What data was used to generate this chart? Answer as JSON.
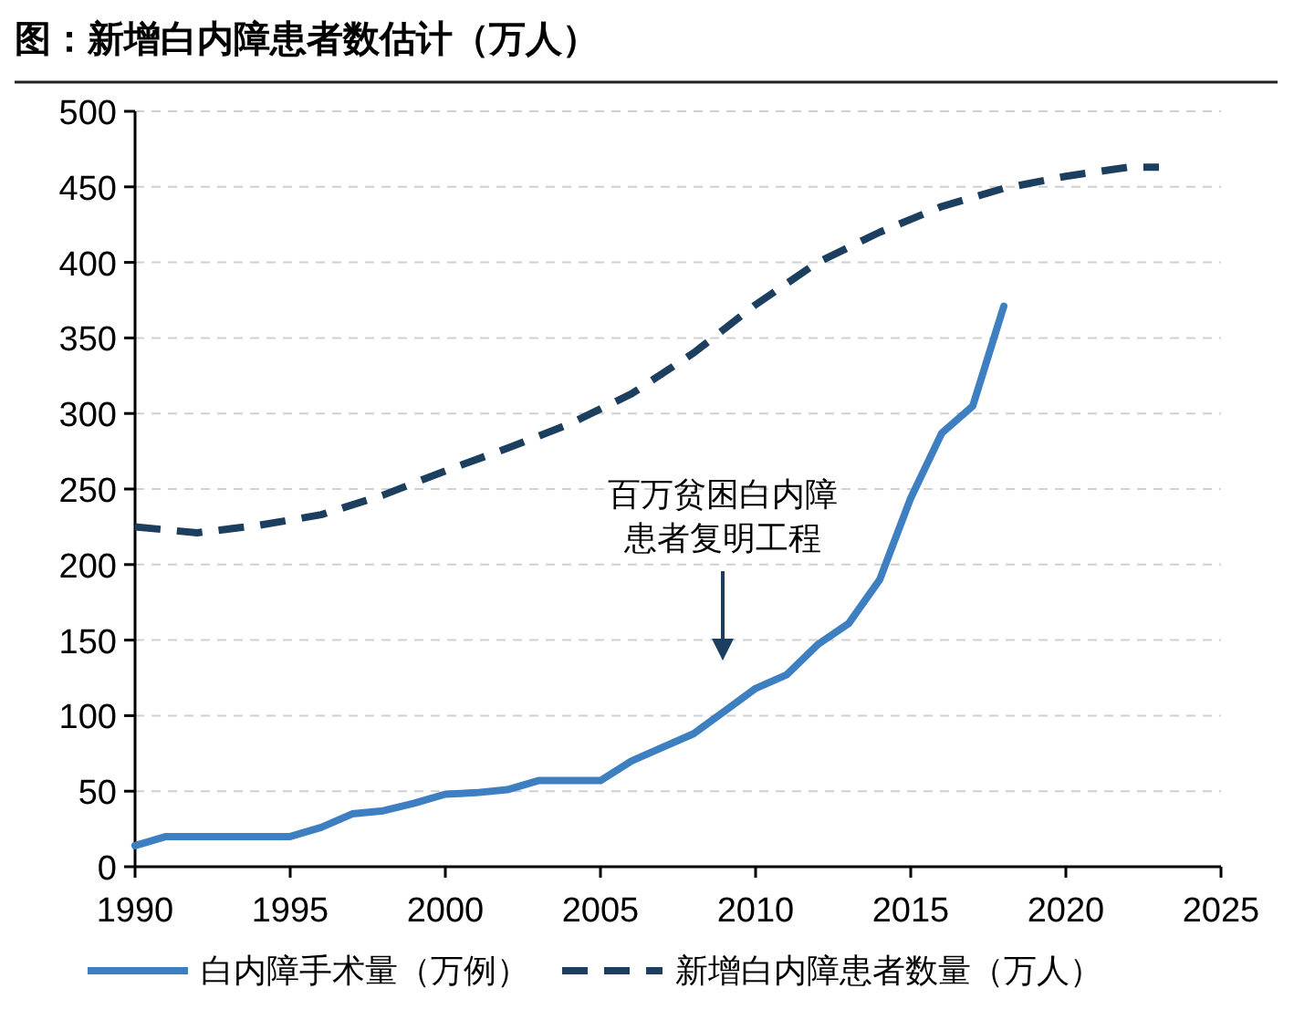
{
  "chart_data": {
    "type": "line",
    "title": "图：新增白内障患者数估计（万人）",
    "series": [
      {
        "name": "白内障手术量（万例）",
        "color": "#3d7fc1",
        "line_style": "solid",
        "x": [
          1990,
          1991,
          1992,
          1993,
          1994,
          1995,
          1996,
          1997,
          1998,
          1999,
          2000,
          2001,
          2002,
          2003,
          2004,
          2005,
          2006,
          2007,
          2008,
          2009,
          2010,
          2011,
          2012,
          2013,
          2014,
          2015,
          2016,
          2017,
          2018
        ],
        "values": [
          14,
          20,
          20,
          20,
          20,
          20,
          26,
          35,
          37,
          42,
          48,
          49,
          51,
          57,
          57,
          57,
          70,
          79,
          88,
          103,
          118,
          127,
          147,
          161,
          190,
          244,
          287,
          305,
          371
        ]
      },
      {
        "name": "新增白内障患者数量（万人）",
        "color": "#1c3f60",
        "line_style": "dashed",
        "x": [
          1990,
          1992,
          1994,
          1996,
          1998,
          2000,
          2002,
          2004,
          2006,
          2008,
          2010,
          2012,
          2014,
          2016,
          2018,
          2020,
          2022,
          2023
        ],
        "values": [
          225,
          221,
          226,
          233,
          246,
          262,
          277,
          293,
          313,
          340,
          372,
          400,
          420,
          437,
          449,
          457,
          463,
          463
        ]
      }
    ],
    "xlim": [
      1990,
      2025
    ],
    "xticks": [
      1990,
      1995,
      2000,
      2005,
      2010,
      2015,
      2020,
      2025
    ],
    "ylim": [
      0,
      500
    ],
    "yticks": [
      0,
      50,
      100,
      150,
      200,
      250,
      300,
      350,
      400,
      450,
      500
    ],
    "grid": "y",
    "legend": "bottom",
    "marker": "none",
    "annotations": [
      "百万贫困白内障患者复明工程"
    ]
  }
}
